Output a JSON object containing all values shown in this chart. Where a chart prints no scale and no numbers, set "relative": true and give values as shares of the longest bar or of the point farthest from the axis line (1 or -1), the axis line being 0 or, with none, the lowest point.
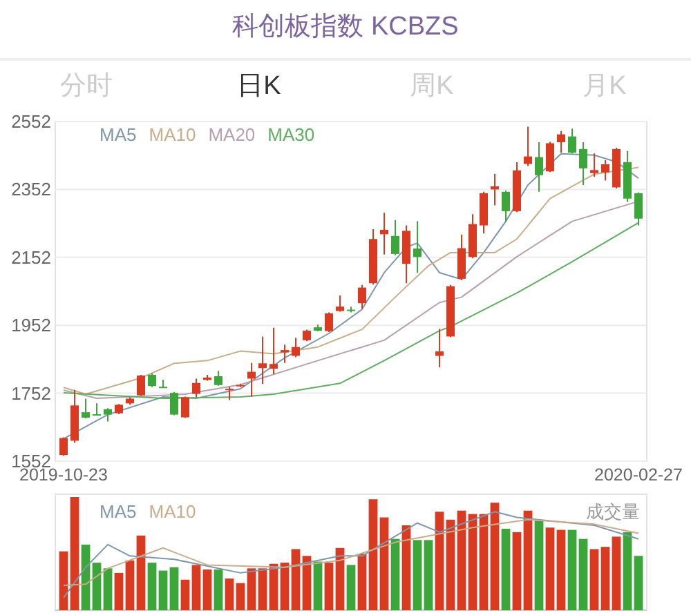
{
  "chart_data": [
    {
      "type": "candlestick",
      "title": "科创板指数 KCBZS",
      "annotations": [
        "分时",
        "日K",
        "周K",
        "月K"
      ],
      "categories": [
        "2019-10-23",
        null,
        null,
        null,
        null,
        null,
        null,
        null,
        null,
        null,
        null,
        null,
        null,
        null,
        null,
        null,
        null,
        null,
        null,
        null,
        null,
        null,
        null,
        null,
        null,
        null,
        null,
        null,
        null,
        null,
        null,
        null,
        null,
        null,
        null,
        null,
        null,
        null,
        null,
        null,
        null,
        null,
        null,
        null,
        null,
        null,
        null,
        null,
        null,
        null,
        null,
        null,
        "2020-02-27"
      ],
      "ylim": [
        1552,
        2552
      ],
      "yticks": [
        1552,
        1752,
        1952,
        2152,
        2352,
        2552
      ],
      "grid": "y",
      "series": [
        {
          "ohlc": [
            [
              1570,
              1622,
              1568,
              1620
            ],
            [
              1612,
              1762,
              1606,
              1716
            ],
            [
              1696,
              1736,
              1678,
              1680
            ],
            [
              1690,
              1722,
              1688,
              1688
            ],
            [
              1705,
              1708,
              1669,
              1689
            ],
            [
              1693,
              1720,
              1690,
              1718
            ],
            [
              1722,
              1740,
              1718,
              1736
            ],
            [
              1746,
              1806,
              1744,
              1804
            ],
            [
              1806,
              1810,
              1770,
              1773
            ],
            [
              1771,
              1792,
              1769,
              1770
            ],
            [
              1753,
              1756,
              1687,
              1689
            ],
            [
              1681,
              1742,
              1679,
              1740
            ],
            [
              1750,
              1795,
              1740,
              1782
            ],
            [
              1791,
              1806,
              1789,
              1798
            ],
            [
              1802,
              1818,
              1774,
              1776
            ],
            [
              1763,
              1771,
              1732,
              1765
            ],
            [
              1772,
              1780,
              1770,
              1776
            ],
            [
              1795,
              1841,
              1742,
              1815
            ],
            [
              1826,
              1919,
              1779,
              1840
            ],
            [
              1824,
              1945,
              1808,
              1838
            ],
            [
              1872,
              1895,
              1841,
              1879
            ],
            [
              1862,
              1915,
              1858,
              1888
            ],
            [
              1908,
              1939,
              1905,
              1936
            ],
            [
              1946,
              1954,
              1934,
              1936
            ],
            [
              1935,
              1990,
              1932,
              1987
            ],
            [
              1994,
              2040,
              1992,
              2007
            ],
            [
              1998,
              2007,
              1990,
              1994
            ],
            [
              2017,
              2071,
              2001,
              2063
            ],
            [
              2076,
              2235,
              2072,
              2206
            ],
            [
              2220,
              2283,
              2160,
              2233
            ],
            [
              2215,
              2262,
              2158,
              2162
            ],
            [
              2133,
              2246,
              2076,
              2230
            ],
            [
              2178,
              2259,
              2107,
              2153
            ],
            null,
            [
              1862,
              1941,
              1828,
              1875
            ],
            [
              1919,
              2071,
              1917,
              2067
            ],
            [
              2089,
              2219,
              2085,
              2179
            ],
            [
              2153,
              2279,
              2149,
              2250
            ],
            [
              2246,
              2345,
              2222,
              2341
            ],
            [
              2352,
              2398,
              2305,
              2361
            ],
            [
              2345,
              2349,
              2257,
              2288
            ],
            [
              2288,
              2432,
              2285,
              2408
            ],
            [
              2427,
              2537,
              2421,
              2449
            ],
            [
              2447,
              2491,
              2345,
              2394
            ],
            [
              2405,
              2492,
              2403,
              2488
            ],
            [
              2491,
              2524,
              2460,
              2514
            ],
            [
              2508,
              2531,
              2458,
              2460
            ],
            [
              2471,
              2491,
              2365,
              2414
            ],
            [
              2400,
              2458,
              2389,
              2409
            ],
            [
              2402,
              2438,
              2378,
              2426
            ],
            [
              2358,
              2475,
              2355,
              2471
            ],
            [
              2432,
              2465,
              2315,
              2325
            ],
            [
              2341,
              2343,
              2246,
              2266
            ]
          ],
          "colors": [
            "#d93a22",
            "#d93a22",
            "#3da63a",
            "#3da63a",
            "#3da63a",
            "#d93a22",
            "#d93a22",
            "#d93a22",
            "#3da63a",
            "#3da63a",
            "#3da63a",
            "#d93a22",
            "#d93a22",
            "#d93a22",
            "#3da63a",
            "#d93a22",
            "#d93a22",
            "#d93a22",
            "#d93a22",
            "#d93a22",
            "#d93a22",
            "#d93a22",
            "#d93a22",
            "#3da63a",
            "#d93a22",
            "#d93a22",
            "#3da63a",
            "#d93a22",
            "#d93a22",
            "#d93a22",
            "#3da63a",
            "#d93a22",
            "#3da63a",
            null,
            "#d93a22",
            "#d93a22",
            "#d93a22",
            "#d93a22",
            "#d93a22",
            "#d93a22",
            "#3da63a",
            "#d93a22",
            "#d93a22",
            "#3da63a",
            "#d93a22",
            "#d93a22",
            "#3da63a",
            "#3da63a",
            "#d93a22",
            "#d93a22",
            "#d93a22",
            "#3da63a",
            "#3da63a"
          ]
        },
        {
          "type": "line",
          "name": "MA5",
          "color": "#7f97ab",
          "values": [
            1618,
            null,
            null,
            null,
            1689,
            null,
            null,
            null,
            null,
            1741,
            null,
            null,
            1737,
            null,
            null,
            null,
            1765,
            null,
            null,
            null,
            1856,
            null,
            null,
            null,
            1928,
            null,
            null,
            1999,
            null,
            2107,
            null,
            2182,
            2194,
            null,
            2107,
            null,
            2087,
            null,
            2166,
            null,
            2258,
            null,
            2365,
            null,
            null,
            2457,
            null,
            null,
            2453,
            null,
            2433,
            null,
            2385
          ]
        },
        {
          "type": "line",
          "name": "MA10",
          "color": "#c9ad8a",
          "values": [
            1769,
            null,
            1749,
            null,
            null,
            null,
            null,
            1797,
            null,
            null,
            1840,
            null,
            null,
            1848,
            null,
            null,
            1876,
            null,
            null,
            1868,
            null,
            null,
            null,
            1888,
            null,
            null,
            null,
            1940,
            null,
            null,
            2035,
            null,
            null,
            2127,
            null,
            2166,
            null,
            null,
            null,
            2166,
            null,
            2206,
            null,
            null,
            2325,
            null,
            null,
            null,
            2397,
            null,
            null,
            null,
            2417
          ]
        },
        {
          "type": "line",
          "name": "MA20",
          "color": "#b79fb0",
          "values": [
            1761,
            null,
            null,
            1737,
            null,
            null,
            null,
            null,
            null,
            null,
            null,
            1749,
            null,
            null,
            null,
            null,
            1777,
            null,
            null,
            null,
            null,
            null,
            null,
            1848,
            null,
            null,
            null,
            null,
            null,
            1908,
            null,
            null,
            null,
            null,
            2019,
            null,
            2035,
            null,
            null,
            null,
            null,
            2154,
            null,
            null,
            null,
            null,
            2258,
            null,
            null,
            null,
            null,
            null,
            2317
          ]
        },
        {
          "type": "line",
          "name": "MA30",
          "color": "#5fae5f",
          "values": [
            1753,
            null,
            null,
            null,
            null,
            null,
            null,
            null,
            null,
            1737,
            null,
            null,
            null,
            null,
            null,
            null,
            1741,
            null,
            null,
            1749,
            null,
            null,
            null,
            null,
            null,
            1781,
            null,
            null,
            null,
            1848,
            null,
            null,
            null,
            null,
            1936,
            1948,
            null,
            null,
            null,
            null,
            null,
            2047,
            null,
            null,
            null,
            null,
            2139,
            null,
            null,
            null,
            null,
            null,
            2254
          ]
        }
      ]
    },
    {
      "type": "bar",
      "title": "成交量",
      "relative": true,
      "categories": [
        null,
        null,
        null,
        null,
        null,
        null,
        null,
        null,
        null,
        null,
        null,
        null,
        null,
        null,
        null,
        null,
        null,
        null,
        null,
        null,
        null,
        null,
        null,
        null,
        null,
        null,
        null,
        null,
        null,
        null,
        null,
        null,
        null,
        null,
        null,
        null,
        null,
        null,
        null,
        null,
        null,
        null,
        null,
        null,
        null,
        null,
        null,
        null,
        null,
        null,
        null,
        null,
        null
      ],
      "series": [
        {
          "values": [
            0.52,
            1.0,
            0.58,
            0.42,
            0.37,
            0.33,
            0.44,
            0.66,
            0.42,
            0.35,
            0.38,
            0.27,
            0.4,
            0.36,
            0.36,
            0.28,
            0.24,
            0.37,
            0.37,
            0.41,
            0.42,
            0.54,
            0.48,
            0.43,
            0.42,
            0.55,
            0.4,
            0.5,
            0.98,
            0.82,
            0.63,
            0.75,
            0.62,
            0.62,
            0.87,
            0.8,
            0.88,
            0.85,
            0.85,
            0.95,
            0.72,
            0.69,
            0.88,
            0.79,
            0.73,
            0.71,
            0.71,
            0.63,
            0.54,
            0.56,
            0.65,
            0.69,
            0.48
          ],
          "colors": [
            "#d93a22",
            "#d93a22",
            "#3da63a",
            "#3da63a",
            "#3da63a",
            "#d93a22",
            "#d93a22",
            "#d93a22",
            "#3da63a",
            "#3da63a",
            "#3da63a",
            "#d93a22",
            "#d93a22",
            "#d93a22",
            "#3da63a",
            "#d93a22",
            "#d93a22",
            "#d93a22",
            "#d93a22",
            "#d93a22",
            "#d93a22",
            "#d93a22",
            "#d93a22",
            "#3da63a",
            "#d93a22",
            "#d93a22",
            "#3da63a",
            "#d93a22",
            "#d93a22",
            "#d93a22",
            "#3da63a",
            "#d93a22",
            "#3da63a",
            "#3da63a",
            "#d93a22",
            "#d93a22",
            "#d93a22",
            "#d93a22",
            "#d93a22",
            "#d93a22",
            "#3da63a",
            "#d93a22",
            "#d93a22",
            "#3da63a",
            "#d93a22",
            "#d93a22",
            "#3da63a",
            "#3da63a",
            "#d93a22",
            "#d93a22",
            "#d93a22",
            "#3da63a",
            "#3da63a"
          ]
        },
        {
          "type": "line",
          "name": "MA5",
          "color": "#7f97ab",
          "values": [
            0.11,
            null,
            0.38,
            null,
            0.58,
            null,
            0.48,
            null,
            null,
            null,
            0.45,
            null,
            null,
            null,
            null,
            null,
            0.33,
            null,
            null,
            null,
            0.38,
            null,
            null,
            null,
            null,
            0.48,
            null,
            0.48,
            null,
            null,
            null,
            null,
            0.77,
            null,
            0.69,
            null,
            null,
            null,
            null,
            0.87,
            null,
            0.82,
            null,
            null,
            0.79,
            null,
            null,
            null,
            0.75,
            null,
            null,
            null,
            0.63
          ]
        },
        {
          "type": "line",
          "name": "MA10",
          "color": "#c9ad8a",
          "values": [
            0.22,
            null,
            0.23,
            null,
            0.37,
            null,
            null,
            null,
            null,
            0.55,
            null,
            null,
            null,
            0.4,
            null,
            null,
            null,
            null,
            null,
            null,
            0.38,
            null,
            null,
            null,
            null,
            0.44,
            null,
            null,
            null,
            null,
            0.6,
            null,
            null,
            null,
            null,
            null,
            null,
            0.73,
            null,
            null,
            null,
            null,
            0.8,
            null,
            null,
            null,
            null,
            null,
            0.76,
            null,
            null,
            null,
            0.68
          ]
        }
      ]
    }
  ]
}
